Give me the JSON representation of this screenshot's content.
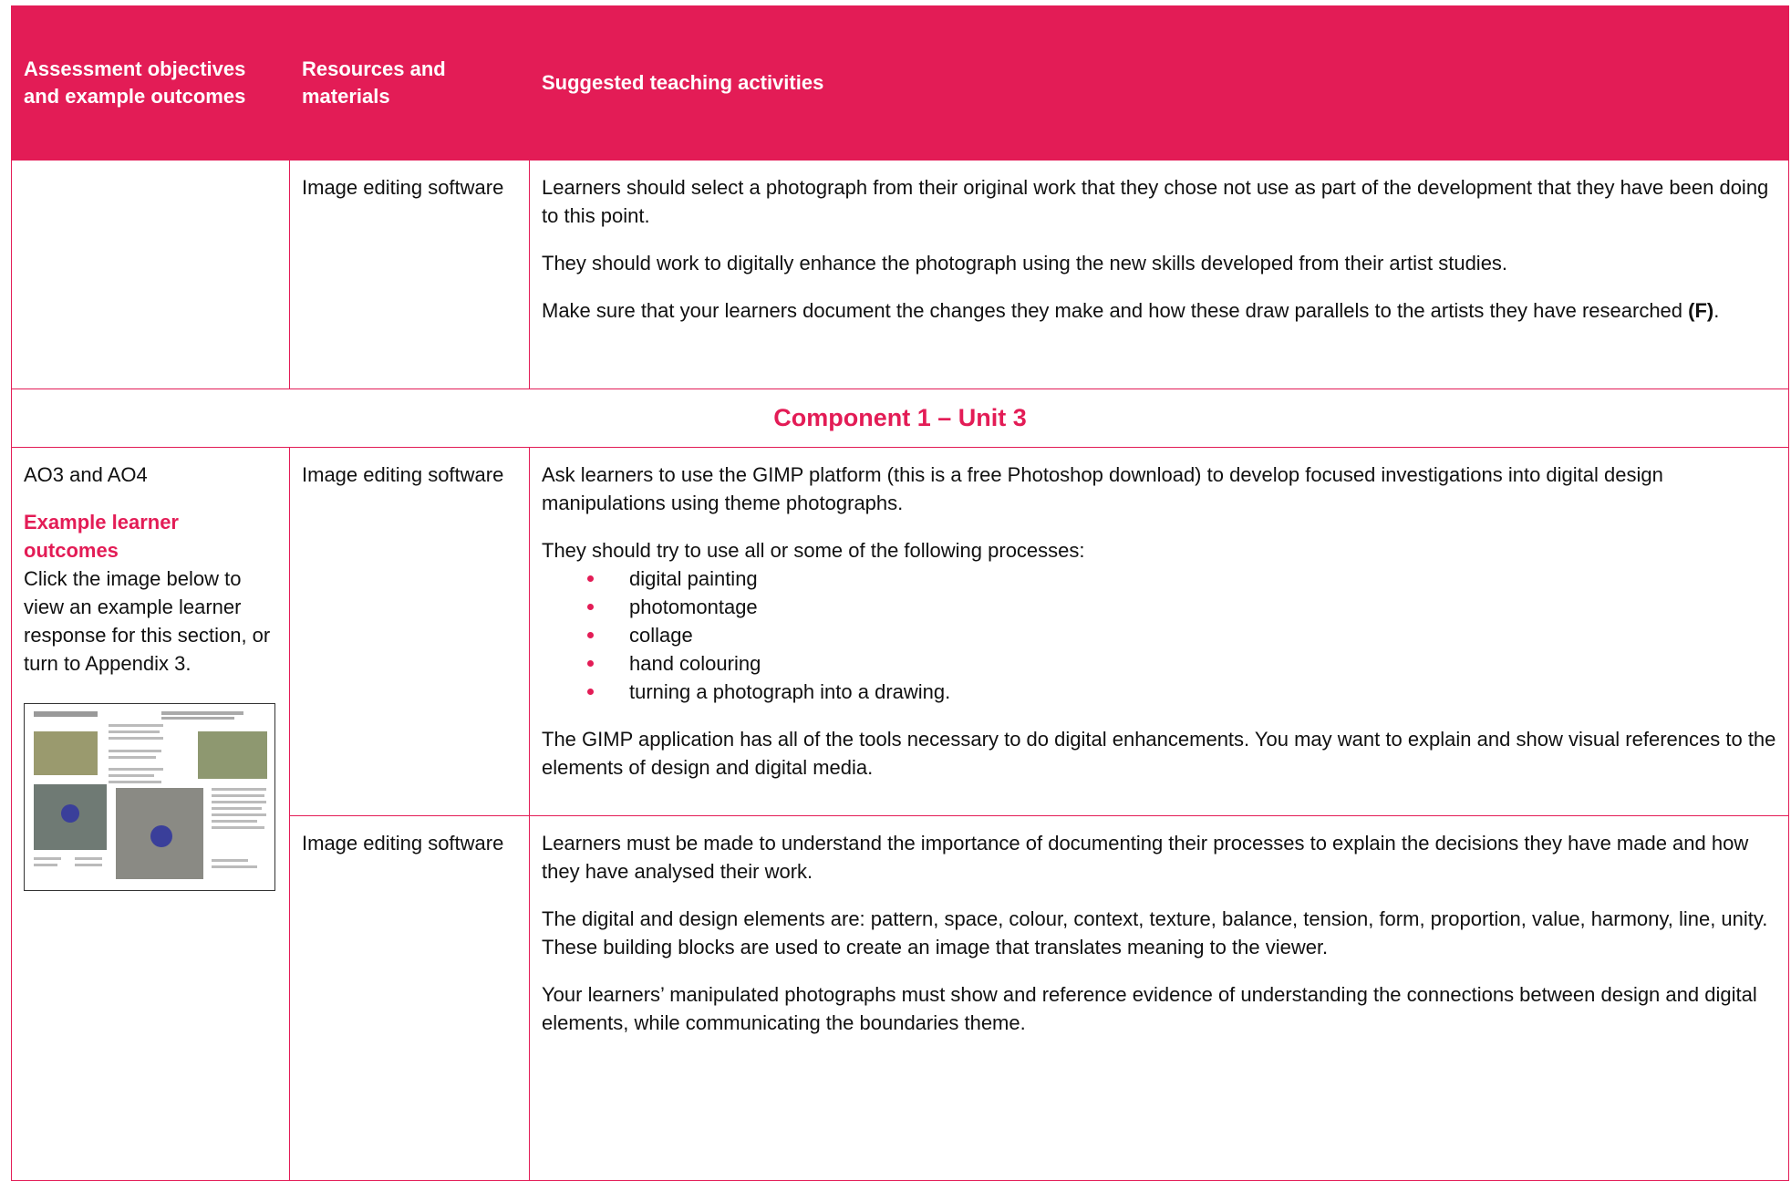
{
  "header": {
    "columns": [
      "Assessment objectives and example outcomes",
      "Resources and materials",
      "Suggested teaching activities"
    ]
  },
  "table": {
    "rows": [
      {
        "resources": "Image editing software",
        "activities": [
          "Learners should select a photograph from their original work that they chose not use as part of the development that they have been doing to this point.",
          "They should work to digitally enhance the photograph using the new skills developed from their artist studies.",
          {
            "text": "Make sure that your learners document the changes they make and how these draw parallels to the artists they have researched ",
            "bold": "(F)",
            "end": "."
          }
        ]
      },
      {
        "section_heading": "Component 1 – Unit 3"
      },
      {
        "objectives": "AO3 and AO4",
        "example_heading": "Example learner outcomes",
        "example_text": "Click the image below to view an example learner response for this section, or turn to Appendix 3.",
        "resources": "Image editing software",
        "activities": {
          "intro": [
            "Ask learners to use the GIMP platform (this is a free Photoshop download) to develop focused investigations into digital design manipulations using theme photographs.",
            "They should try to use all or some of the following processes:"
          ],
          "list": [
            "digital painting",
            "photomontage",
            "collage",
            "hand colouring",
            "turning a photograph into a drawing."
          ],
          "after": "The GIMP application has all of the tools necessary to do digital enhancements. You may want to explain and show visual references to the elements of design and digital media."
        }
      },
      {
        "resources": "Image editing software",
        "activities": [
          "Learners must be made to understand the importance of documenting their processes to explain the decisions they have made and how they have analysed their work.",
          "The digital and design elements are: pattern, space, colour, context, texture, balance, tension, form, proportion, value, harmony, line, unity. These building blocks are used to create an image that translates meaning to the viewer.",
          "Your learners’ manipulated photographs must show and reference evidence of understanding the connections between design and digital elements, while communicating the boundaries theme."
        ]
      }
    ]
  }
}
